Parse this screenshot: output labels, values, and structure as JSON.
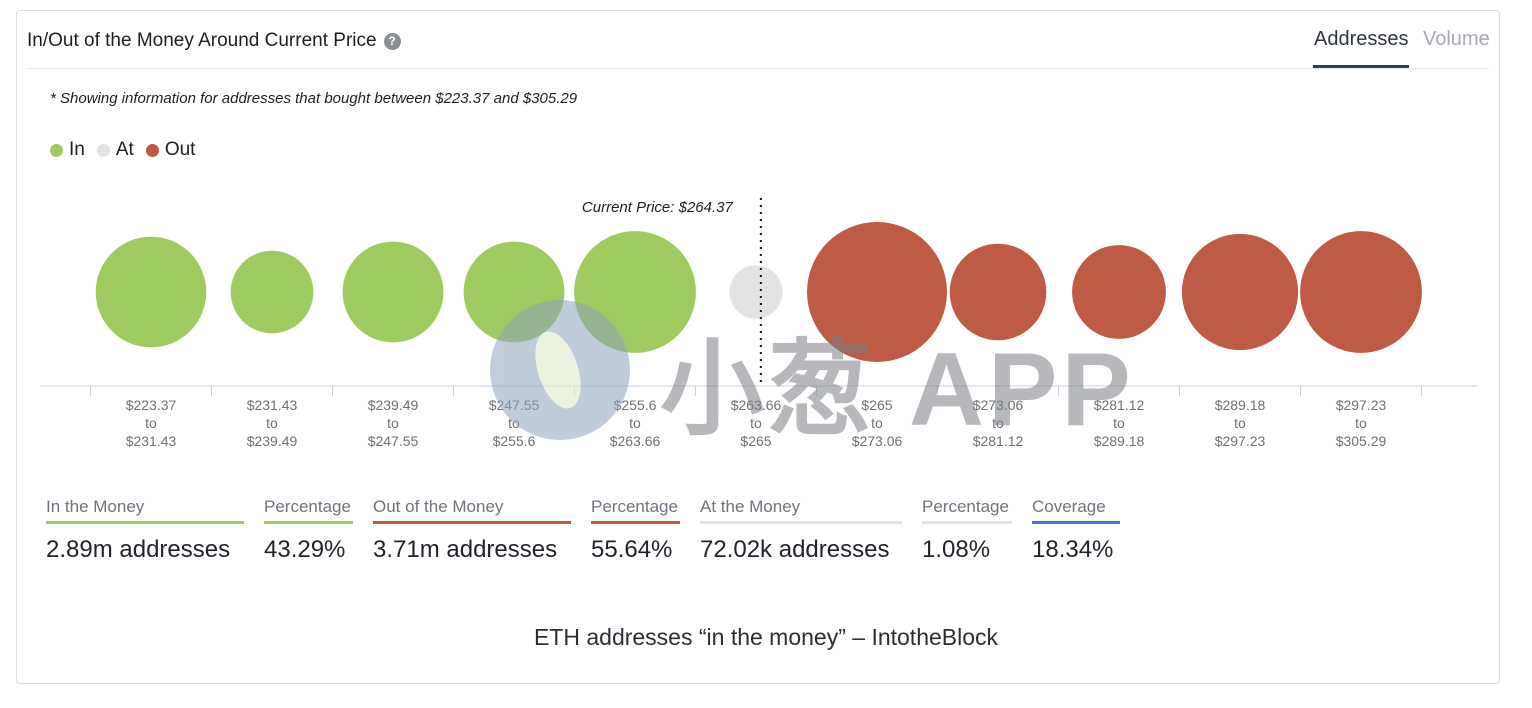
{
  "header": {
    "title": "In/Out of the Money Around Current Price",
    "help_icon": "question-circle-icon",
    "tabs": [
      {
        "label": "Addresses",
        "active": true
      },
      {
        "label": "Volume",
        "active": false
      }
    ]
  },
  "note": "* Showing information for addresses that bought between $223.37 and $305.29",
  "legend": [
    {
      "label": "In",
      "color": "#9ecb5f"
    },
    {
      "label": "At",
      "color": "#e3e3e3"
    },
    {
      "label": "Out",
      "color": "#bf5a45"
    }
  ],
  "chart_data": {
    "type": "bubble",
    "current_price_label": "Current Price: $264.37",
    "current_price": 264.37,
    "current_price_after_bucket": 5,
    "buckets": [
      {
        "from": "$223.37",
        "to": "$231.43",
        "status": "in",
        "relative_size": 0.79
      },
      {
        "from": "$231.43",
        "to": "$239.49",
        "status": "in",
        "relative_size": 0.59
      },
      {
        "from": "$239.49",
        "to": "$247.55",
        "status": "in",
        "relative_size": 0.72
      },
      {
        "from": "$247.55",
        "to": "$255.6",
        "status": "in",
        "relative_size": 0.72
      },
      {
        "from": "$255.6",
        "to": "$263.66",
        "status": "in",
        "relative_size": 0.87
      },
      {
        "from": "$263.66",
        "to": "$265",
        "status": "at",
        "relative_size": 0.38
      },
      {
        "from": "$265",
        "to": "$273.06",
        "status": "out",
        "relative_size": 1.0
      },
      {
        "from": "$273.06",
        "to": "$281.12",
        "status": "out",
        "relative_size": 0.69
      },
      {
        "from": "$281.12",
        "to": "$289.18",
        "status": "out",
        "relative_size": 0.67
      },
      {
        "from": "$289.18",
        "to": "$297.23",
        "status": "out",
        "relative_size": 0.83
      },
      {
        "from": "$297.23",
        "to": "$305.29",
        "status": "out",
        "relative_size": 0.87
      }
    ],
    "range_connector": "to",
    "colors": {
      "in": "#9ecb5f",
      "at": "#e3e3e3",
      "out": "#bf5a45"
    }
  },
  "summary": [
    {
      "label": "In the Money",
      "value": "2.89m addresses",
      "color": "#9ecb5f"
    },
    {
      "label": "Percentage",
      "value": "43.29%",
      "color": "#9ecb5f"
    },
    {
      "label": "Out of the Money",
      "value": "3.71m addresses",
      "color": "#bf5a45"
    },
    {
      "label": "Percentage",
      "value": "55.64%",
      "color": "#bf5a45"
    },
    {
      "label": "At the Money",
      "value": "72.02k addresses",
      "color": "#e3e3e3"
    },
    {
      "label": "Percentage",
      "value": "1.08%",
      "color": "#e3e3e3"
    },
    {
      "label": "Coverage",
      "value": "18.34%",
      "color": "#4a72d6"
    }
  ],
  "caption": "ETH addresses “in the money” – IntotheBlock",
  "watermark": {
    "text": "小葱 APP",
    "icon": "xiaocong-logo-icon"
  }
}
